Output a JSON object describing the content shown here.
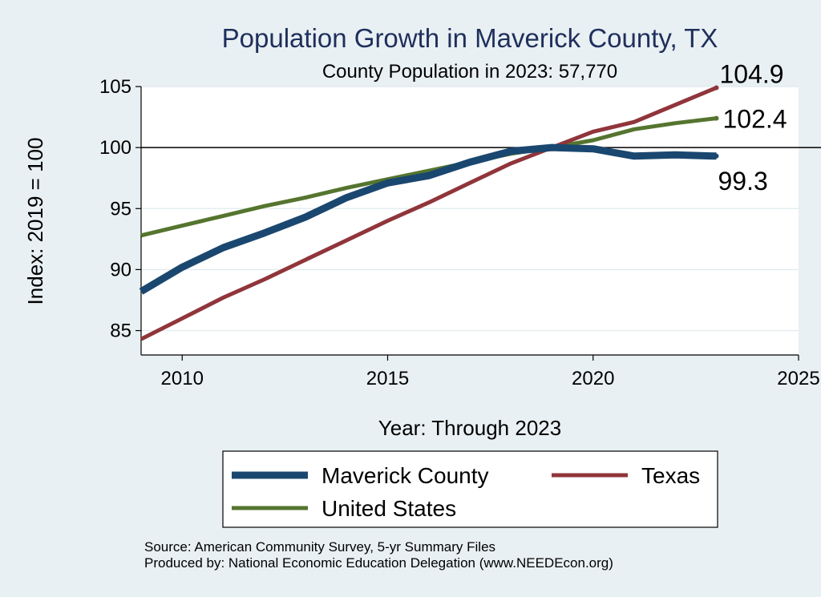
{
  "chart_data": {
    "type": "line",
    "title": "Population Growth in Maverick County, TX",
    "subtitle": "County Population in 2023: 57,770",
    "xlabel": "Year: Through 2023",
    "ylabel": "Index: 2019 = 100",
    "xlim": [
      2009,
      2025
    ],
    "ylim": [
      83,
      105
    ],
    "xticks": [
      2010,
      2015,
      2020,
      2025
    ],
    "yticks": [
      85,
      90,
      95,
      100,
      105
    ],
    "reference_line": 100,
    "grid": true,
    "x": [
      2009,
      2010,
      2011,
      2012,
      2013,
      2014,
      2015,
      2016,
      2017,
      2018,
      2019,
      2020,
      2021,
      2022,
      2023
    ],
    "series": [
      {
        "name": "Maverick  County",
        "color": "#1a476f",
        "values": [
          88.2,
          90.2,
          91.8,
          93.0,
          94.3,
          95.9,
          97.1,
          97.7,
          98.8,
          99.7,
          100.0,
          99.9,
          99.3,
          99.4,
          99.3
        ],
        "end_label": "99.3"
      },
      {
        "name": "Texas",
        "color": "#90353b",
        "values": [
          84.3,
          86.0,
          87.7,
          89.2,
          90.8,
          92.4,
          94.0,
          95.5,
          97.1,
          98.7,
          100.0,
          101.3,
          102.1,
          103.5,
          104.9
        ],
        "end_label": "104.9"
      },
      {
        "name": "United States",
        "color": "#55752f",
        "values": [
          92.8,
          93.6,
          94.4,
          95.2,
          95.9,
          96.7,
          97.4,
          98.1,
          98.8,
          99.5,
          100.0,
          100.6,
          101.5,
          102.0,
          102.4
        ],
        "end_label": "102.4"
      }
    ],
    "legend": {
      "position": "bottom",
      "entries": [
        "Maverick  County",
        "Texas",
        "United States"
      ]
    }
  },
  "footer": {
    "source": "Source: American Community Survey, 5-yr Summary Files",
    "produced_by": "Produced by: National Economic Education Delegation (www.NEEDEcon.org)"
  }
}
